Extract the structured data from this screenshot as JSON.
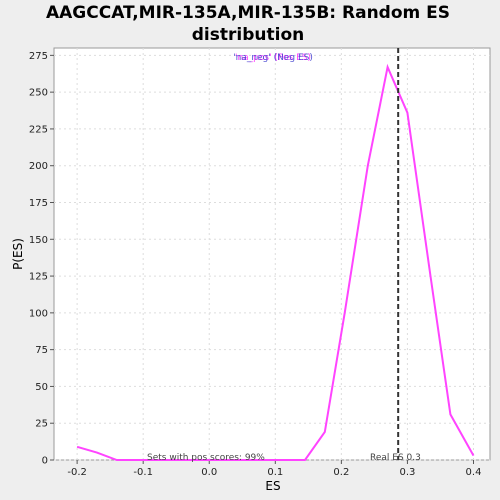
{
  "chart_data": {
    "type": "line",
    "title_line1": "AAGCCAT,MIR-135A,MIR-135B: Random ES",
    "title_line2": "distribution",
    "xlabel": "ES",
    "ylabel": "P(ES)",
    "xlim": [
      -0.235,
      0.425
    ],
    "ylim": [
      0,
      280
    ],
    "x_ticks": [
      -0.2,
      -0.1,
      0.0,
      0.1,
      0.2,
      0.3,
      0.4
    ],
    "x_tick_labels": [
      "-0.2",
      "-0.1",
      "0.0",
      "0.1",
      "0.2",
      "0.3",
      "0.4"
    ],
    "y_ticks": [
      0,
      25,
      50,
      75,
      100,
      125,
      150,
      175,
      200,
      225,
      250,
      275
    ],
    "y_tick_labels": [
      "0",
      "25",
      "50",
      "75",
      "100",
      "125",
      "150",
      "175",
      "200",
      "225",
      "250",
      "275"
    ],
    "grid": true,
    "legend": {
      "placement": "top-center",
      "entries": [
        {
          "label": "'na_pos' (Pos ES)",
          "color": "#ff44ff"
        },
        {
          "label": "'na_neg' (Neg ES)",
          "color": "#3333cc"
        }
      ]
    },
    "series": [
      {
        "color": "#ff44ff",
        "x": [
          -0.2,
          -0.17,
          -0.14,
          -0.11,
          -0.08,
          -0.05,
          -0.02,
          0.01,
          0.04,
          0.07,
          0.1,
          0.145,
          0.175,
          0.205,
          0.24,
          0.27,
          0.3,
          0.335,
          0.365,
          0.4
        ],
        "y": [
          9,
          5,
          0,
          0,
          0,
          0,
          0,
          0,
          0,
          0,
          0,
          0,
          19,
          100,
          200,
          267,
          236,
          125,
          31,
          3
        ]
      }
    ],
    "vline": {
      "x": 0.286,
      "label": "Real ES 0.3",
      "style": "dashed",
      "color": "#333333"
    },
    "annotations": [
      {
        "text": "Sets with pos scores: 99%"
      },
      {
        "text": "Real ES 0.3"
      }
    ]
  }
}
